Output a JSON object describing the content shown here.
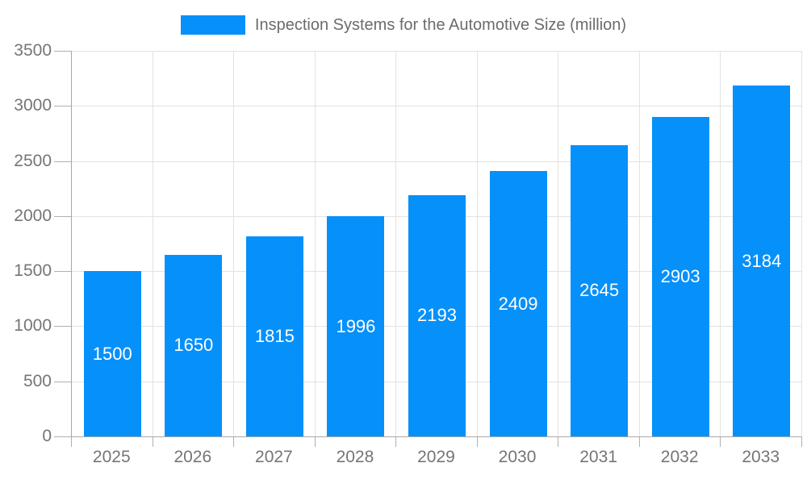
{
  "legend": {
    "label": "Inspection Systems for the Automotive Size (million)",
    "swatch_color": "#0690FA"
  },
  "chart_data": {
    "type": "bar",
    "title": "Inspection Systems for the Automotive Size (million)",
    "series_name": "Inspection Systems for the Automotive Size (million)",
    "categories": [
      "2025",
      "2026",
      "2027",
      "2028",
      "2029",
      "2030",
      "2031",
      "2032",
      "2033"
    ],
    "values": [
      1500,
      1650,
      1815,
      1996,
      2193,
      2409,
      2645,
      2903,
      3184
    ],
    "xlabel": "",
    "ylabel": "",
    "ylim": [
      0,
      3500
    ],
    "yticks": [
      0,
      500,
      1000,
      1500,
      2000,
      2500,
      3000,
      3500
    ],
    "grid": true,
    "legend_position": "top",
    "value_labels_position": "inside-center"
  },
  "colors": {
    "background": "#ffffff",
    "bar": "#0690FA",
    "bar_label": "#ffffff",
    "axis_line": "#a8a8a8",
    "tick": "#b0b0b0",
    "gridline": "#e2e2e2",
    "axis_label": "#757575",
    "legend_text": "#6b6b6b"
  }
}
